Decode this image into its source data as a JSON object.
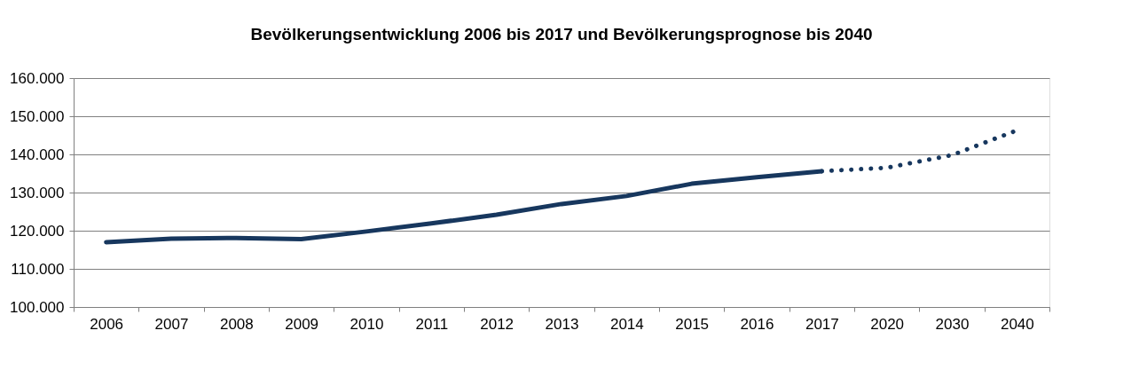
{
  "chart_data": {
    "type": "line",
    "title": "Bevölkerungsentwicklung 2006 bis 2017 und Bevölkerungsprognose bis 2040",
    "categories": [
      "2006",
      "2007",
      "2008",
      "2009",
      "2010",
      "2011",
      "2012",
      "2013",
      "2014",
      "2015",
      "2016",
      "2017",
      "2020",
      "2030",
      "2040"
    ],
    "series": [
      {
        "color": "#17375e",
        "line_style": "solid",
        "values": [
          117000,
          117900,
          118100,
          117800,
          119800,
          121900,
          124200,
          127000,
          129100,
          132300,
          134000,
          135600,
          null,
          null,
          null
        ]
      },
      {
        "color": "#17375e",
        "line_style": "dotted",
        "values": [
          null,
          null,
          null,
          null,
          null,
          null,
          null,
          null,
          null,
          null,
          null,
          135600,
          136500,
          139800,
          146300
        ]
      }
    ],
    "ylim": [
      100000,
      160000
    ],
    "yticks": [
      {
        "value": 100000,
        "label": "100.000"
      },
      {
        "value": 110000,
        "label": "110.000"
      },
      {
        "value": 120000,
        "label": "120.000"
      },
      {
        "value": 130000,
        "label": "130.000"
      },
      {
        "value": 140000,
        "label": "140.000"
      },
      {
        "value": 150000,
        "label": "150.000"
      },
      {
        "value": 160000,
        "label": "160.000"
      }
    ],
    "grid": "y",
    "marker": "none"
  }
}
